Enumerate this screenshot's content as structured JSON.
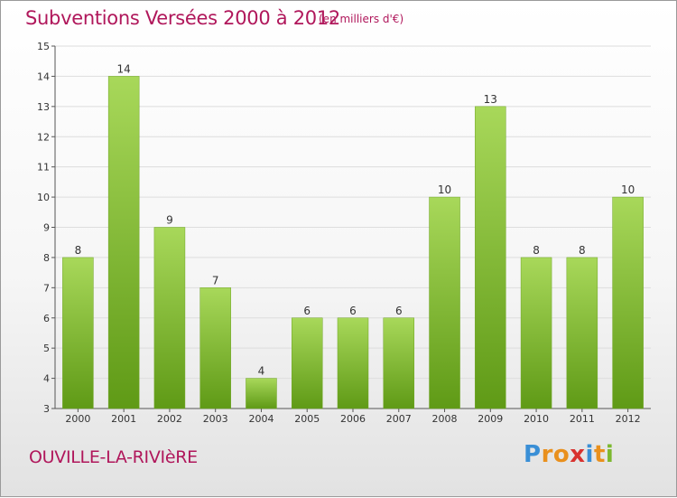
{
  "title": "Subventions Versées 2000 à 2012",
  "unit_note": "(en milliers d'€)",
  "commune": "OUVILLE-LA-RIVIèRE",
  "logo": {
    "letters": [
      "P",
      "r",
      "o",
      "x",
      "i",
      "t",
      "i"
    ],
    "colors": [
      "#3a8fd6",
      "#e9901d",
      "#e9901d",
      "#d8322f",
      "#3a8fd6",
      "#e9901d",
      "#7cb82f"
    ]
  },
  "colors": {
    "accent": "#b0175b",
    "bar_light": "#a8d85a",
    "bar_dark": "#5f9a16",
    "grid": "#dddddd",
    "axis": "#555555"
  },
  "chart_data": {
    "type": "bar",
    "categories": [
      "2000",
      "2001",
      "2002",
      "2003",
      "2004",
      "2005",
      "2006",
      "2007",
      "2008",
      "2009",
      "2010",
      "2011",
      "2012"
    ],
    "values": [
      8,
      14,
      9,
      7,
      4,
      6,
      6,
      6,
      10,
      13,
      8,
      8,
      10
    ],
    "ylim": [
      3,
      15
    ],
    "yticks": [
      3,
      4,
      5,
      6,
      7,
      8,
      9,
      10,
      11,
      12,
      13,
      14,
      15
    ],
    "grid": true,
    "data_labels": true,
    "title": "Subventions Versées 2000 à 2012",
    "xlabel": "",
    "ylabel": ""
  }
}
